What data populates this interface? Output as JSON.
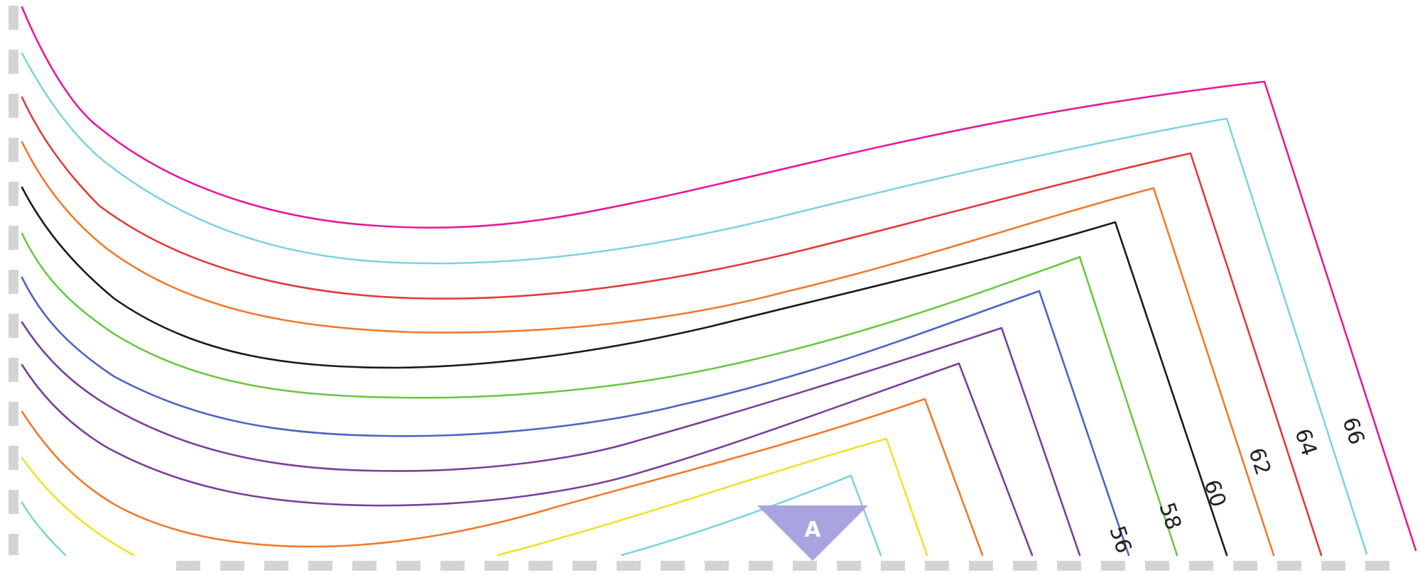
{
  "diagram": {
    "colors": {
      "boundary_dash": "#d4d4d4",
      "marker_fill": "#a9a3e0",
      "label_text": "#222222"
    },
    "contours": [
      {
        "color": "#e6199b"
      },
      {
        "color": "#7fd3e0"
      },
      {
        "color": "#e23a3a"
      },
      {
        "color": "#f07a2a"
      },
      {
        "color": "#1a1a1a"
      },
      {
        "color": "#6cc644"
      },
      {
        "color": "#4f63c4"
      },
      {
        "color": "#7a3f9a"
      },
      {
        "color": "#7a3f9a"
      },
      {
        "color": "#f07a2a"
      },
      {
        "color": "#f2e12a"
      },
      {
        "color": "#7fd3e0"
      }
    ],
    "labels": [
      "66",
      "64",
      "62",
      "60",
      "58",
      "56"
    ],
    "marker": {
      "label": "A",
      "icon": "triangle-marker-icon"
    }
  }
}
